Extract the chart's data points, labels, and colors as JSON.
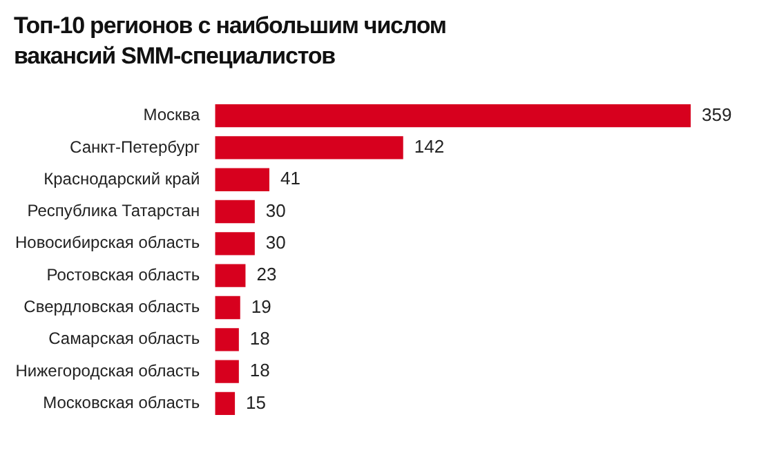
{
  "chart_data": {
    "type": "bar",
    "orientation": "horizontal",
    "title": "Топ-10 регионов с наибольшим числом вакансий SMM-специалистов",
    "categories": [
      "Москва",
      "Санкт-Петербург",
      "Краснодарский край",
      "Республика Татарстан",
      "Новосибирская область",
      "Ростовская область",
      "Свердловская область",
      "Самарская область",
      "Нижегородская область",
      "Московская область"
    ],
    "values": [
      359,
      142,
      41,
      30,
      30,
      23,
      19,
      18,
      18,
      15
    ],
    "color": "#d7001e",
    "data_labels": true,
    "legend": false,
    "tick_labels": "y"
  }
}
